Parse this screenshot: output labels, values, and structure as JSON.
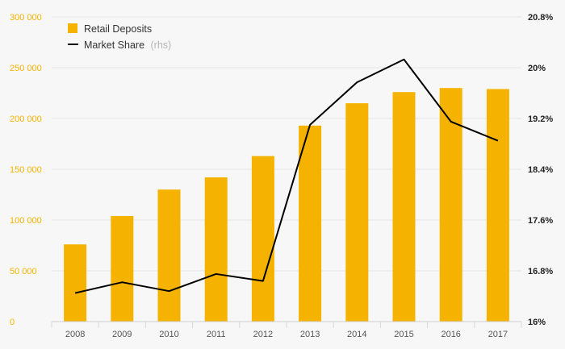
{
  "chart_data": {
    "type": "bar+line",
    "categories": [
      "2008",
      "2009",
      "2010",
      "2011",
      "2012",
      "2013",
      "2014",
      "2015",
      "2016",
      "2017"
    ],
    "series": [
      {
        "name": "Retail Deposits",
        "type": "bar",
        "axis": "left",
        "color": "#F5B300",
        "values": [
          76000,
          104000,
          130000,
          142000,
          163000,
          193000,
          215000,
          226000,
          230000,
          229000
        ]
      },
      {
        "name": "Market Share",
        "legend_suffix": "(rhs)",
        "type": "line",
        "axis": "right",
        "color": "#000000",
        "values": [
          16.45,
          16.62,
          16.48,
          16.75,
          16.64,
          19.1,
          19.77,
          20.13,
          19.15,
          18.85
        ]
      }
    ],
    "left_axis": {
      "ylim": [
        0,
        300000
      ],
      "ticks": [
        0,
        50000,
        100000,
        150000,
        200000,
        250000,
        300000
      ],
      "tick_labels": [
        "0",
        "50 000",
        "100 000",
        "150 000",
        "200 000",
        "250 000",
        "300 000"
      ],
      "color": "#F5B300"
    },
    "right_axis": {
      "ylim": [
        16,
        20.8
      ],
      "ticks": [
        16,
        16.8,
        17.6,
        18.4,
        19.2,
        20,
        20.8
      ],
      "tick_labels": [
        "16%",
        "16.8%",
        "17.6%",
        "18.4%",
        "19.2%",
        "20%",
        "20.8%"
      ],
      "color": "#222222"
    },
    "legend": {
      "placement": "top-left",
      "items": [
        {
          "label": "Retail Deposits",
          "suffix": "",
          "marker": "square"
        },
        {
          "label": "Market Share",
          "suffix": "(rhs)",
          "marker": "line"
        }
      ]
    },
    "grid": true,
    "title": "",
    "xlabel": "",
    "ylabel": ""
  }
}
